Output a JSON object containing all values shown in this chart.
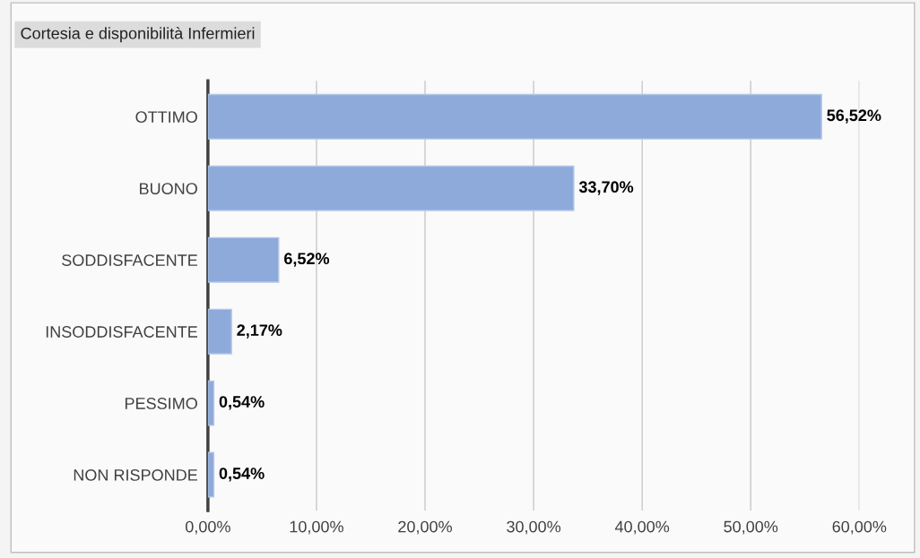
{
  "chart_data": {
    "type": "bar",
    "orientation": "horizontal",
    "title": "Cortesia e disponibilità Infermieri",
    "categories": [
      "OTTIMO",
      "BUONO",
      "SODDISFACENTE",
      "INSODDISFACENTE",
      "PESSIMO",
      "NON RISPONDE"
    ],
    "values": [
      56.52,
      33.7,
      6.52,
      2.17,
      0.54,
      0.54
    ],
    "value_labels": [
      "56,52%",
      "33,70%",
      "6,52%",
      "2,17%",
      "0,54%",
      "0,54%"
    ],
    "color": "#8eaadb",
    "xlim": [
      0,
      60
    ],
    "xticks": [
      {
        "value": 0,
        "label": "0,00%"
      },
      {
        "value": 10,
        "label": "10,00%"
      },
      {
        "value": 20,
        "label": "20,00%"
      },
      {
        "value": 30,
        "label": "30,00%"
      },
      {
        "value": 40,
        "label": "40,00%"
      },
      {
        "value": 50,
        "label": "50,00%"
      },
      {
        "value": 60,
        "label": "60,00%"
      }
    ],
    "grid": "x"
  }
}
